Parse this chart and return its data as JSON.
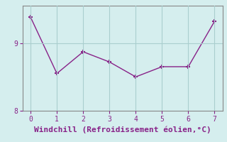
{
  "x": [
    0,
    1,
    2,
    3,
    4,
    5,
    6,
    7
  ],
  "y": [
    9.38,
    8.55,
    8.87,
    8.72,
    8.5,
    8.65,
    8.65,
    9.32
  ],
  "line_color": "#882288",
  "marker": "+",
  "marker_size": 5,
  "marker_lw": 1.5,
  "xlabel": "Windchill (Refroidissement éolien,°C)",
  "xlabel_fontsize": 8,
  "yticks": [
    8,
    9
  ],
  "xticks": [
    0,
    1,
    2,
    3,
    4,
    5,
    6,
    7
  ],
  "xlim": [
    -0.3,
    7.3
  ],
  "ylim": [
    8.2,
    9.55
  ],
  "background_color": "#d5eeee",
  "grid_color": "#aacece",
  "spine_color": "#888888"
}
